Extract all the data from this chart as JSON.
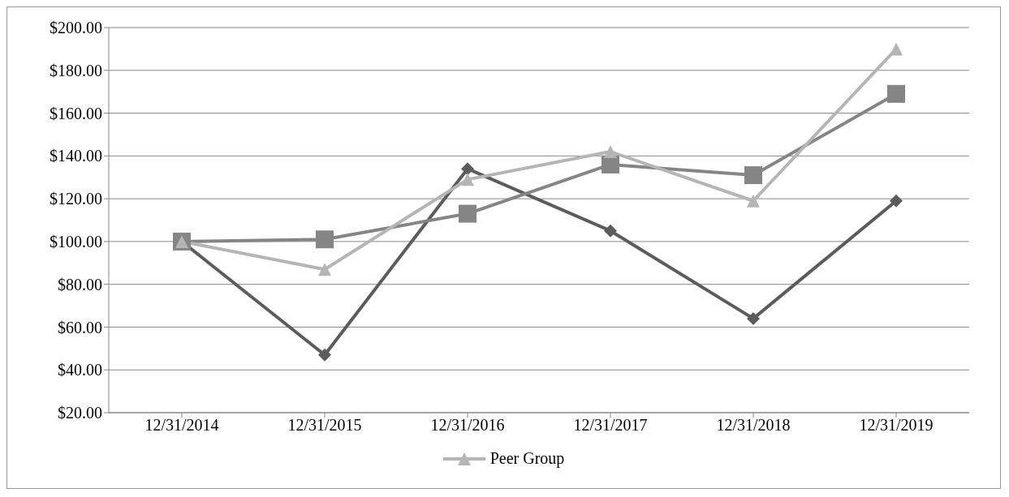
{
  "chart_data": {
    "type": "line",
    "categories": [
      "12/31/2014",
      "12/31/2015",
      "12/31/2016",
      "12/31/2017",
      "12/31/2018",
      "12/31/2019"
    ],
    "series": [
      {
        "color": "#5c5c5c",
        "marker": "diamond",
        "values": [
          100,
          47,
          134,
          105,
          64,
          119
        ]
      },
      {
        "color": "#858585",
        "marker": "square",
        "values": [
          100,
          101,
          113,
          136,
          131,
          169
        ]
      },
      {
        "name": "Peer Group",
        "color": "#b5b5b5",
        "marker": "triangle",
        "values": [
          100,
          87,
          129,
          142,
          119,
          190
        ]
      }
    ],
    "ylim": [
      20,
      200
    ],
    "yticks": [
      {
        "value": 20,
        "label": "$20.00"
      },
      {
        "value": 40,
        "label": "$40.00"
      },
      {
        "value": 60,
        "label": "$60.00"
      },
      {
        "value": 80,
        "label": "$80.00"
      },
      {
        "value": 100,
        "label": "$100.00"
      },
      {
        "value": 120,
        "label": "$120.00"
      },
      {
        "value": 140,
        "label": "$140.00"
      },
      {
        "value": 160,
        "label": "$160.00"
      },
      {
        "value": 180,
        "label": "$180.00"
      },
      {
        "value": 200,
        "label": "$200.00"
      }
    ],
    "grid": "y",
    "legend": "bottom",
    "line_style": "solid"
  }
}
